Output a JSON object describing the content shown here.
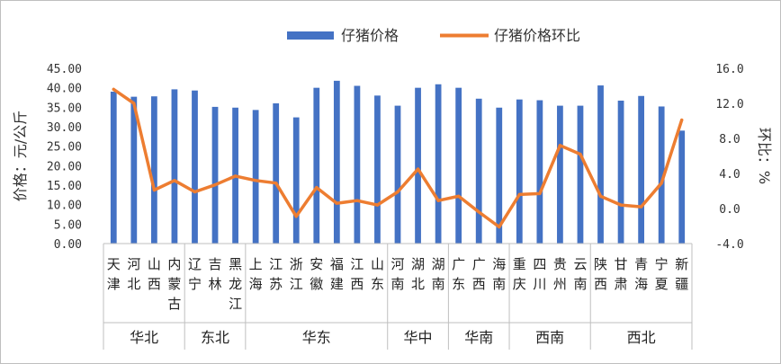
{
  "chart_data": {
    "type": "bar+line",
    "categories": [
      "天津",
      "河北",
      "山西",
      "内蒙古",
      "辽宁",
      "吉林",
      "黑龙江",
      "上海",
      "江苏",
      "浙江",
      "安徽",
      "福建",
      "江西",
      "山东",
      "河南",
      "湖北",
      "湖南",
      "广东",
      "广西",
      "海南",
      "重庆",
      "四川",
      "贵州",
      "云南",
      "陕西",
      "甘肃",
      "青海",
      "宁夏",
      "新疆"
    ],
    "series": [
      {
        "name": "仔猪价格",
        "axis": "left",
        "type": "bar",
        "color": "#4472C4",
        "values": [
          39.0,
          37.7,
          37.8,
          39.6,
          39.3,
          35.1,
          34.9,
          34.3,
          36.0,
          32.4,
          40.0,
          41.8,
          40.5,
          38.0,
          35.4,
          40.0,
          40.9,
          40.0,
          37.2,
          34.9,
          37.0,
          36.8,
          35.4,
          35.4,
          40.6,
          36.7,
          37.9,
          35.2,
          29.0
        ]
      },
      {
        "name": "仔猪价格环比",
        "axis": "right",
        "type": "line",
        "color": "#ED7D31",
        "values": [
          13.6,
          12.0,
          2.1,
          3.2,
          1.9,
          2.7,
          3.7,
          3.2,
          2.9,
          -0.9,
          2.4,
          0.6,
          0.9,
          0.4,
          1.9,
          4.5,
          0.9,
          1.4,
          -0.4,
          -2.1,
          1.6,
          1.7,
          7.2,
          6.2,
          1.4,
          0.4,
          0.2,
          2.9,
          10.1
        ]
      }
    ],
    "left_axis": {
      "title": "价格：元/公斤",
      "ylim": [
        0,
        45
      ],
      "ticks": [
        "0.00",
        "5.00",
        "10.00",
        "15.00",
        "20.00",
        "25.00",
        "30.00",
        "35.00",
        "40.00",
        "45.00"
      ]
    },
    "right_axis": {
      "title": "环比：%",
      "ylim": [
        -4,
        16
      ],
      "ticks": [
        "-4.0",
        "0.0",
        "4.0",
        "8.0",
        "12.0",
        "16.0"
      ],
      "negative_tick_color": "#FF0000"
    },
    "regions": [
      {
        "name": "华北",
        "count": 4
      },
      {
        "name": "东北",
        "count": 3
      },
      {
        "name": "华东",
        "count": 7
      },
      {
        "name": "华中",
        "count": 3
      },
      {
        "name": "华南",
        "count": 3
      },
      {
        "name": "西南",
        "count": 4
      },
      {
        "name": "西北",
        "count": 5
      }
    ],
    "legend": {
      "position": "top"
    },
    "grid": false
  }
}
